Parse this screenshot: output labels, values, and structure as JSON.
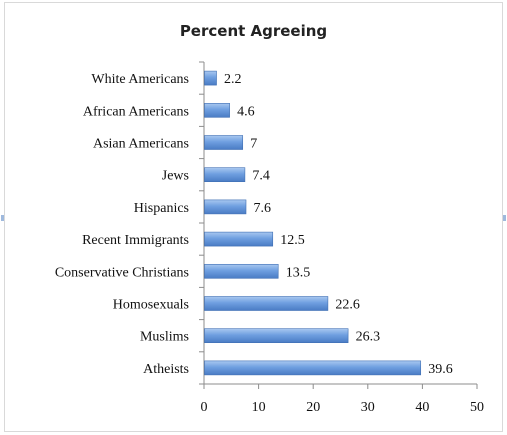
{
  "chart_data": {
    "type": "bar",
    "orientation": "horizontal",
    "title": "Percent Agreeing",
    "categories": [
      "White Americans",
      "African Americans",
      "Asian Americans",
      "Jews",
      "Hispanics",
      "Recent Immigrants",
      "Conservative Christians",
      "Homosexuals",
      "Muslims",
      "Atheists"
    ],
    "values": [
      2.2,
      4.6,
      7,
      7.4,
      7.6,
      12.5,
      13.5,
      22.6,
      26.3,
      39.6
    ],
    "value_labels": [
      "2.2",
      "4.6",
      "7",
      "7.4",
      "7.6",
      "12.5",
      "13.5",
      "22.6",
      "26.3",
      "39.6"
    ],
    "xlim": [
      0,
      50
    ],
    "x_ticks": [
      0,
      10,
      20,
      30,
      40,
      50
    ],
    "xlabel": "",
    "ylabel": "",
    "grid": false,
    "legend": "none",
    "bar_color": "#5b8fd6"
  }
}
